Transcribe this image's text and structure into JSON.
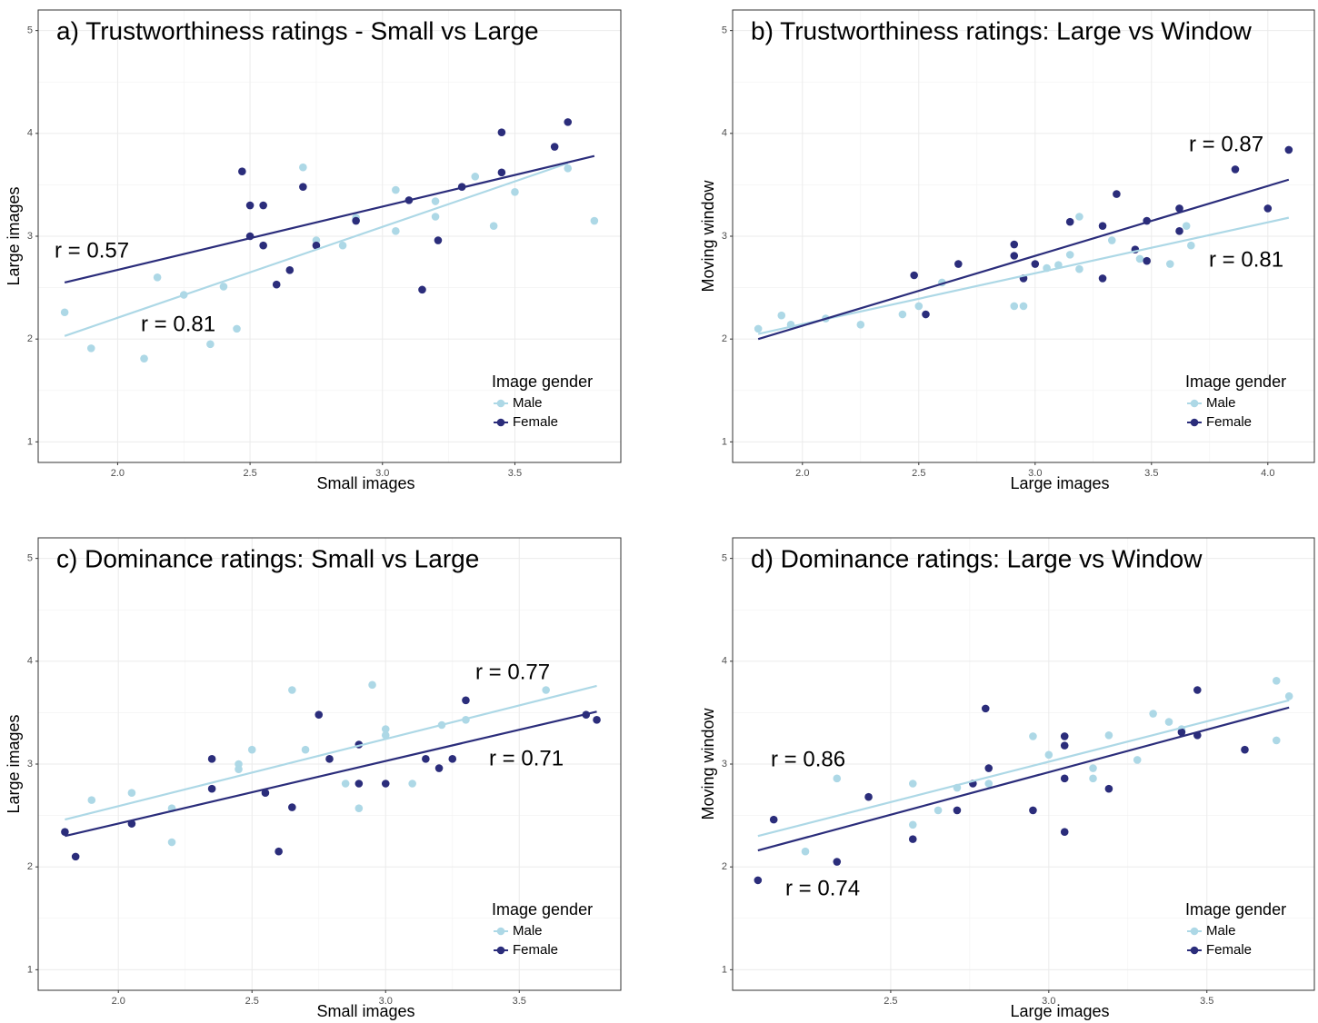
{
  "chart_data": [
    {
      "type": "scatter",
      "title": "a) Trustworthiness ratings - Small vs Large",
      "x_label": "Small images",
      "y_label": "Large images",
      "xlim": [
        1.7,
        3.9
      ],
      "ylim": [
        0.8,
        5.2
      ],
      "xticks": [
        {
          "value": 2,
          "label": "2.0"
        },
        {
          "value": 2.5,
          "label": "2.5"
        },
        {
          "value": 3,
          "label": "3.0"
        },
        {
          "value": 3.5,
          "label": "3.5"
        }
      ],
      "yticks": [
        1,
        2,
        3,
        4,
        5
      ],
      "grid": true,
      "legend_title": "Image gender",
      "legend_position": "bottom-right",
      "series": [
        {
          "name": "Male",
          "color": "#add8e6",
          "x": [
            1.8,
            1.9,
            2.1,
            2.15,
            2.25,
            2.35,
            2.4,
            2.45,
            2.7,
            2.75,
            2.85,
            2.9,
            3.05,
            3.05,
            3.2,
            3.2,
            3.35,
            3.42,
            3.5,
            3.7,
            3.8
          ],
          "y": [
            2.26,
            1.91,
            1.81,
            2.6,
            2.43,
            1.95,
            2.51,
            2.1,
            3.67,
            2.96,
            2.91,
            3.18,
            3.45,
            3.05,
            3.34,
            3.19,
            3.58,
            3.1,
            3.43,
            3.66,
            3.15
          ],
          "trend": {
            "x": [
              1.8,
              3.7
            ],
            "y": [
              2.03,
              3.71
            ]
          }
        },
        {
          "name": "Female",
          "color": "#2b2d7b",
          "x": [
            2.47,
            2.5,
            2.55,
            2.5,
            2.55,
            2.6,
            2.65,
            2.7,
            2.75,
            2.9,
            3.1,
            3.15,
            3.21,
            3.3,
            3.45,
            3.45,
            3.65,
            3.7
          ],
          "y": [
            3.63,
            3.3,
            3.3,
            3.0,
            2.91,
            2.53,
            2.67,
            3.48,
            2.91,
            3.15,
            3.35,
            2.48,
            2.96,
            3.48,
            4.01,
            3.62,
            3.87,
            4.11
          ],
          "trend": {
            "x": [
              1.8,
              3.8
            ],
            "y": [
              2.55,
              3.78
            ]
          }
        }
      ],
      "annotations": [
        {
          "text": "r = 0.57"
        },
        {
          "text": "r = 0.81"
        }
      ]
    },
    {
      "type": "scatter",
      "title": "b) Trustworthiness ratings: Large vs Window",
      "x_label": "Large images",
      "y_label": "Moving window",
      "xlim": [
        1.7,
        4.2
      ],
      "ylim": [
        0.8,
        5.2
      ],
      "xticks": [
        {
          "value": 2,
          "label": "2.0"
        },
        {
          "value": 2.5,
          "label": "2.5"
        },
        {
          "value": 3,
          "label": "3.0"
        },
        {
          "value": 3.5,
          "label": "3.5"
        },
        {
          "value": 4,
          "label": "4.0"
        }
      ],
      "yticks": [
        1,
        2,
        3,
        4,
        5
      ],
      "grid": true,
      "legend_title": "Image gender",
      "legend_position": "bottom-right",
      "series": [
        {
          "name": "Male",
          "color": "#add8e6",
          "x": [
            1.81,
            1.91,
            1.95,
            2.1,
            2.25,
            2.43,
            2.5,
            2.6,
            2.91,
            2.95,
            3.05,
            3.1,
            3.15,
            3.19,
            3.19,
            3.33,
            3.45,
            3.58,
            3.65,
            3.67
          ],
          "y": [
            2.1,
            2.23,
            2.14,
            2.2,
            2.14,
            2.24,
            2.32,
            2.55,
            2.32,
            2.32,
            2.69,
            2.72,
            2.82,
            3.19,
            2.68,
            2.96,
            2.78,
            2.73,
            3.1,
            2.91
          ],
          "trend": {
            "x": [
              1.81,
              4.09
            ],
            "y": [
              2.05,
              3.18
            ]
          }
        },
        {
          "name": "Female",
          "color": "#2b2d7b",
          "x": [
            2.48,
            2.53,
            2.67,
            2.91,
            2.91,
            2.95,
            3.0,
            3.15,
            3.29,
            3.29,
            3.35,
            3.43,
            3.48,
            3.48,
            3.62,
            3.62,
            3.86,
            4.0,
            4.09
          ],
          "y": [
            2.62,
            2.24,
            2.73,
            2.92,
            2.81,
            2.59,
            2.73,
            3.14,
            3.1,
            2.59,
            3.41,
            2.87,
            3.15,
            2.76,
            3.27,
            3.05,
            3.65,
            3.27,
            3.84
          ],
          "trend": {
            "x": [
              1.81,
              4.09
            ],
            "y": [
              2.0,
              3.55
            ]
          }
        }
      ],
      "annotations": [
        {
          "text": "r = 0.87"
        },
        {
          "text": "r = 0.81"
        }
      ]
    },
    {
      "type": "scatter",
      "title": "c) Dominance ratings: Small vs Large",
      "x_label": "Small images",
      "y_label": "Large images",
      "xlim": [
        1.7,
        3.88
      ],
      "ylim": [
        0.8,
        5.2
      ],
      "xticks": [
        {
          "value": 2,
          "label": "2.0"
        },
        {
          "value": 2.5,
          "label": "2.5"
        },
        {
          "value": 3,
          "label": "3.0"
        },
        {
          "value": 3.5,
          "label": "3.5"
        }
      ],
      "yticks": [
        1,
        2,
        3,
        4,
        5
      ],
      "grid": true,
      "legend_title": "Image gender",
      "legend_position": "bottom-right",
      "series": [
        {
          "name": "Male",
          "color": "#add8e6",
          "x": [
            1.9,
            2.05,
            2.2,
            2.2,
            2.45,
            2.45,
            2.5,
            2.65,
            2.7,
            2.85,
            2.9,
            2.95,
            3.0,
            3.0,
            3.1,
            3.21,
            3.3,
            3.6
          ],
          "y": [
            2.65,
            2.72,
            2.57,
            2.24,
            3.0,
            2.95,
            3.14,
            3.72,
            3.14,
            2.81,
            2.57,
            3.77,
            3.34,
            3.28,
            2.81,
            3.38,
            3.43,
            3.72
          ],
          "trend": {
            "x": [
              1.8,
              3.79
            ],
            "y": [
              2.46,
              3.76
            ]
          }
        },
        {
          "name": "Female",
          "color": "#2b2d7b",
          "x": [
            1.8,
            1.84,
            2.05,
            2.35,
            2.35,
            2.55,
            2.6,
            2.65,
            2.75,
            2.79,
            2.9,
            2.9,
            3.0,
            3.15,
            3.2,
            3.25,
            3.3,
            3.75,
            3.79
          ],
          "y": [
            2.34,
            2.1,
            2.42,
            3.05,
            2.76,
            2.72,
            2.15,
            2.58,
            3.48,
            3.05,
            3.19,
            2.81,
            2.81,
            3.05,
            2.96,
            3.05,
            3.62,
            3.48,
            3.43
          ],
          "trend": {
            "x": [
              1.8,
              3.79
            ],
            "y": [
              2.3,
              3.51
            ]
          }
        }
      ],
      "annotations": [
        {
          "text": "r = 0.77"
        },
        {
          "text": "r = 0.71"
        }
      ]
    },
    {
      "type": "scatter",
      "title": "d) Dominance ratings: Large vs Window",
      "x_label": "Large images",
      "y_label": "Moving window",
      "xlim": [
        2.0,
        3.84
      ],
      "ylim": [
        0.8,
        5.2
      ],
      "xticks": [
        {
          "value": 2.5,
          "label": "2.5"
        },
        {
          "value": 3,
          "label": "3.0"
        },
        {
          "value": 3.5,
          "label": "3.5"
        }
      ],
      "yticks": [
        1,
        2,
        3,
        4,
        5
      ],
      "grid": true,
      "legend_title": "Image gender",
      "legend_position": "bottom-right",
      "series": [
        {
          "name": "Male",
          "color": "#add8e6",
          "x": [
            2.23,
            2.33,
            2.57,
            2.57,
            2.65,
            2.71,
            2.81,
            2.95,
            3.0,
            3.14,
            3.14,
            3.19,
            3.28,
            3.33,
            3.38,
            3.42,
            3.72,
            3.72,
            3.76
          ],
          "y": [
            2.15,
            2.86,
            2.81,
            2.41,
            2.55,
            2.77,
            2.81,
            3.27,
            3.09,
            2.96,
            2.86,
            3.28,
            3.04,
            3.49,
            3.41,
            3.34,
            3.81,
            3.23,
            3.66
          ],
          "trend": {
            "x": [
              2.08,
              3.76
            ],
            "y": [
              2.3,
              3.62
            ]
          }
        },
        {
          "name": "Female",
          "color": "#2b2d7b",
          "x": [
            2.08,
            2.13,
            2.33,
            2.43,
            2.57,
            2.71,
            2.76,
            2.8,
            2.81,
            2.95,
            3.05,
            3.05,
            3.05,
            3.05,
            3.19,
            3.42,
            3.47,
            3.47,
            3.62
          ],
          "y": [
            1.87,
            2.46,
            2.05,
            2.68,
            2.27,
            2.55,
            2.81,
            3.54,
            2.96,
            2.55,
            3.27,
            3.18,
            2.86,
            2.34,
            2.76,
            3.31,
            3.72,
            3.28,
            3.14
          ],
          "trend": {
            "x": [
              2.08,
              3.76
            ],
            "y": [
              2.16,
              3.55
            ]
          }
        }
      ],
      "annotations": [
        {
          "text": "r = 0.86"
        },
        {
          "text": "r = 0.74"
        }
      ]
    }
  ]
}
